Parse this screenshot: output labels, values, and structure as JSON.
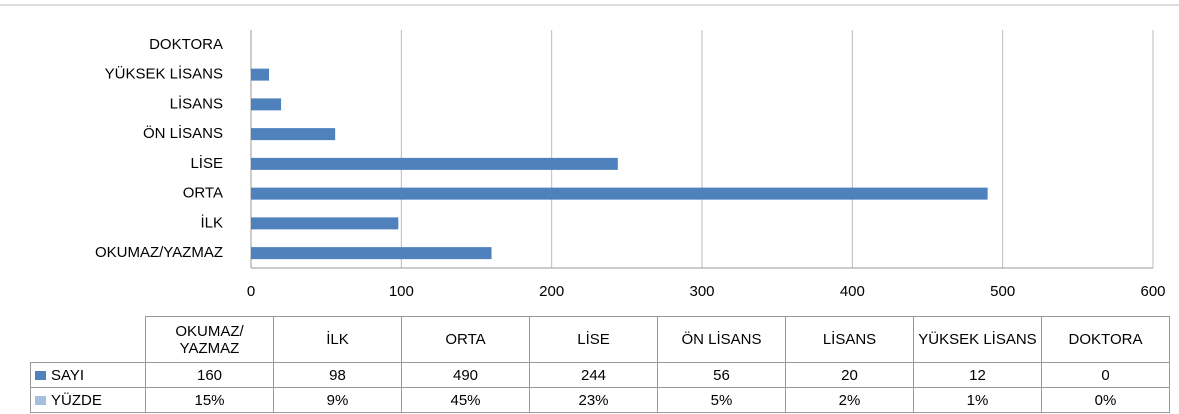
{
  "chart_data": {
    "type": "bar",
    "orientation": "horizontal",
    "categories": [
      "OKUMAZ/ YAZMAZ",
      "İLK",
      "ORTA",
      "LİSE",
      "ÖN LİSANS",
      "LİSANS",
      "YÜKSEK LİSANS",
      "DOKTORA"
    ],
    "series": [
      {
        "name": "SAYI",
        "color": "#4f81bd",
        "values": [
          160,
          98,
          490,
          244,
          56,
          20,
          12,
          0
        ]
      },
      {
        "name": "YÜZDE",
        "color": "#a7bfde",
        "values": [
          15,
          9,
          45,
          23,
          5,
          2,
          1,
          0
        ],
        "value_labels": [
          "15%",
          "9%",
          "45%",
          "23%",
          "5%",
          "2%",
          "1%",
          "0%"
        ]
      }
    ],
    "xlim": [
      0,
      600
    ],
    "xticks": [
      0,
      100,
      200,
      300,
      400,
      500,
      600
    ],
    "grid": true
  }
}
